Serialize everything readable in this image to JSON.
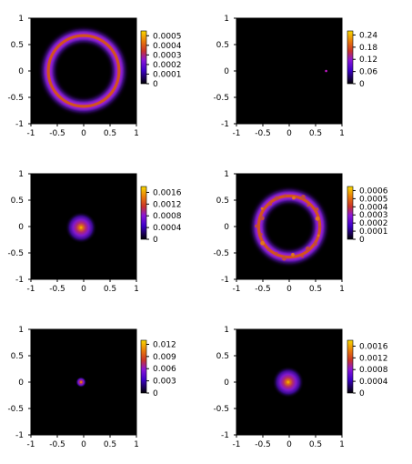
{
  "chart_data": [
    {
      "type": "heatmap",
      "shape": "ring",
      "description_value": "ring radius 0.67, peak 0.0005",
      "x_ticks": [
        "-1",
        "-0.5",
        "0",
        "0.5",
        "1"
      ],
      "y_ticks": [
        "1",
        "0.5",
        "0",
        "-0.5",
        "-1"
      ],
      "xlim": [
        -1,
        1
      ],
      "ylim": [
        -1,
        1
      ],
      "colorbar": {
        "ticks": [
          "0.0005",
          "0.0004",
          "0.0003",
          "0.0002",
          "0.0001",
          "0"
        ],
        "range": [
          0,
          0.00055
        ]
      },
      "ring": {
        "cx": 0,
        "cy": 0,
        "r": 0.67
      }
    },
    {
      "type": "heatmap",
      "shape": "dot",
      "x_ticks": [
        "-1",
        "-0.5",
        "0",
        "0.5",
        "1"
      ],
      "y_ticks": [
        "1",
        "0.5",
        "0",
        "-0.5",
        "-1"
      ],
      "xlim": [
        -1,
        1
      ],
      "ylim": [
        -1,
        1
      ],
      "colorbar": {
        "ticks": [
          "0.24",
          "0.18",
          "0.12",
          "0.06",
          "0"
        ],
        "range": [
          0,
          0.26
        ]
      },
      "dot": {
        "cx": 0.7,
        "cy": 0.0
      }
    },
    {
      "type": "heatmap",
      "shape": "blob",
      "x_ticks": [
        "-1",
        "-0.5",
        "0",
        "0.5",
        "1"
      ],
      "y_ticks": [
        "1",
        "0.5",
        "0",
        "-0.5",
        "-1"
      ],
      "xlim": [
        -1,
        1
      ],
      "ylim": [
        -1,
        1
      ],
      "colorbar": {
        "ticks": [
          "0.0016",
          "0.0012",
          "0.0008",
          "0.0004",
          "0"
        ],
        "range": [
          0,
          0.0018
        ]
      },
      "blob": {
        "cx": -0.05,
        "cy": -0.02,
        "spread": 0.3
      }
    },
    {
      "type": "heatmap",
      "shape": "ring",
      "x_ticks": [
        "-1",
        "-0.5",
        "0",
        "0.5",
        "1"
      ],
      "y_ticks": [
        "1",
        "0.5",
        "0",
        "-0.5",
        "-1"
      ],
      "xlim": [
        -1,
        1
      ],
      "ylim": [
        -1,
        1
      ],
      "colorbar": {
        "ticks": [
          "0.0006",
          "0.0005",
          "0.0004",
          "0.0003",
          "0.0002",
          "0.0001",
          "0"
        ],
        "range": [
          0,
          0.00065
        ]
      },
      "ring": {
        "cx": 0,
        "cy": 0,
        "r": 0.58,
        "noisy": true
      }
    },
    {
      "type": "heatmap",
      "shape": "blob",
      "x_ticks": [
        "-1",
        "-0.5",
        "0",
        "0.5",
        "1"
      ],
      "y_ticks": [
        "1",
        "0.5",
        "0",
        "-0.5",
        "-1"
      ],
      "xlim": [
        -1,
        1
      ],
      "ylim": [
        -1,
        1
      ],
      "colorbar": {
        "ticks": [
          "0.012",
          "0.009",
          "0.006",
          "0.003",
          "0"
        ],
        "range": [
          0,
          0.013
        ]
      },
      "blob": {
        "cx": -0.05,
        "cy": 0.0,
        "spread": 0.1
      }
    },
    {
      "type": "heatmap",
      "shape": "blob",
      "x_ticks": [
        "-1",
        "-0.5",
        "0",
        "0.5",
        "1"
      ],
      "y_ticks": [
        "1",
        "0.5",
        "0",
        "-0.5",
        "-1"
      ],
      "xlim": [
        -1,
        1
      ],
      "ylim": [
        -1,
        1
      ],
      "colorbar": {
        "ticks": [
          "0.0016",
          "0.0012",
          "0.0008",
          "0.0004",
          "0"
        ],
        "range": [
          0,
          0.0018
        ]
      },
      "blob": {
        "cx": -0.02,
        "cy": 0.0,
        "spread": 0.3
      }
    }
  ]
}
